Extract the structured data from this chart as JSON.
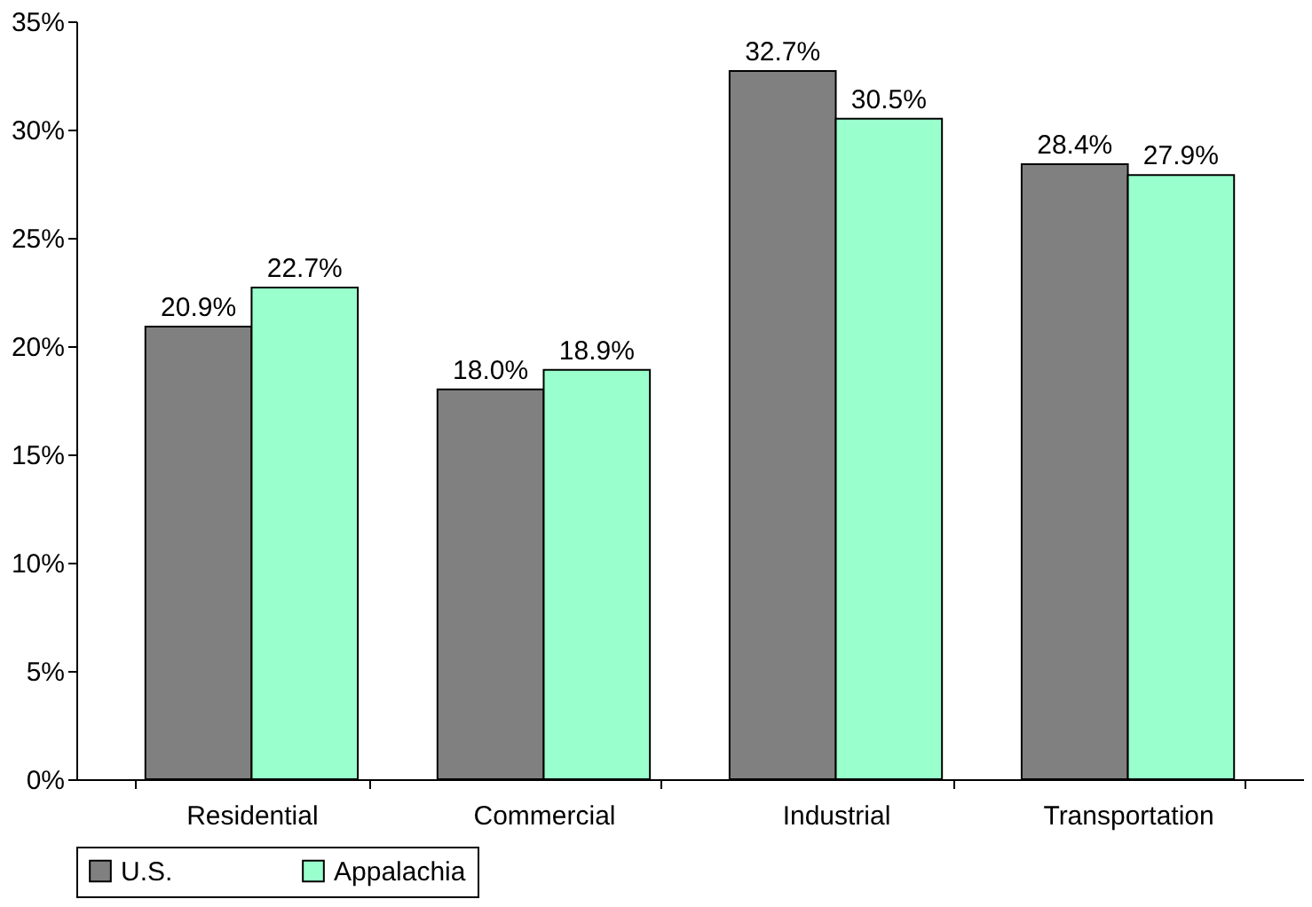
{
  "chart_data": {
    "type": "bar",
    "categories": [
      "Residential",
      "Commercial",
      "Industrial",
      "Transportation"
    ],
    "series": [
      {
        "name": "U.S.",
        "color": "#808080",
        "values": [
          20.9,
          18.0,
          32.7,
          28.4
        ],
        "value_labels": [
          "20.9%",
          "18.0%",
          "32.7%",
          "28.4%"
        ]
      },
      {
        "name": "Appalachia",
        "color": "#99ffcc",
        "values": [
          22.7,
          18.9,
          30.5,
          27.9
        ],
        "value_labels": [
          "22.7%",
          "18.9%",
          "30.5%",
          "27.9%"
        ]
      }
    ],
    "ylim": [
      0,
      35
    ],
    "yticks": [
      {
        "value": 0,
        "label": "0%"
      },
      {
        "value": 5,
        "label": "5%"
      },
      {
        "value": 10,
        "label": "10%"
      },
      {
        "value": 15,
        "label": "15%"
      },
      {
        "value": 20,
        "label": "20%"
      },
      {
        "value": 25,
        "label": "25%"
      },
      {
        "value": 30,
        "label": "30%"
      },
      {
        "value": 35,
        "label": "35%"
      }
    ],
    "grid": false,
    "legend": "bottom"
  }
}
